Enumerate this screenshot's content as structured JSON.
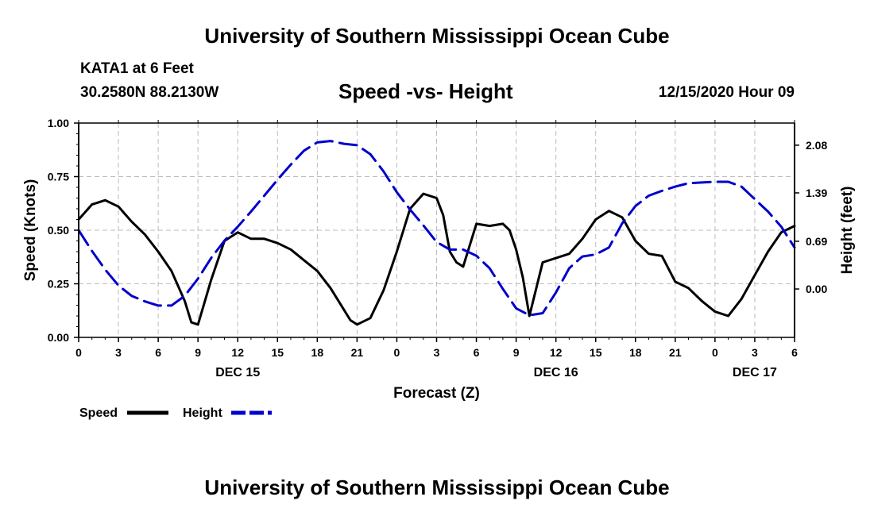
{
  "page": {
    "title": "University of Southern Mississippi Ocean Cube",
    "footer_title": "University of Southern Mississippi Ocean Cube",
    "station": "KATA1 at 6 Feet",
    "coordinates": "30.2580N 88.2130W",
    "forecast_time": "12/15/2020 Hour 09"
  },
  "colors": {
    "speed": "#000000",
    "height": "#0000cc",
    "grid": "#bbbbbb"
  },
  "chart_data": {
    "type": "line",
    "title": "Speed -vs- Height",
    "xlabel": "Forecast (Z)",
    "ylabel": "Speed (Knots)",
    "y2label": "Height (feet)",
    "xlim": [
      0,
      54
    ],
    "ylim": [
      0,
      1
    ],
    "y2lim": [
      -0.7,
      2.4
    ],
    "xticks": [
      0,
      3,
      6,
      9,
      12,
      15,
      18,
      21,
      24,
      27,
      30,
      33,
      36,
      39,
      42,
      45,
      48,
      51,
      54
    ],
    "xtick_labels": [
      "0",
      "3",
      "6",
      "9",
      "12",
      "15",
      "18",
      "21",
      "0",
      "3",
      "6",
      "9",
      "12",
      "15",
      "18",
      "21",
      "0",
      "3",
      "6"
    ],
    "yticks": [
      0,
      0.25,
      0.5,
      0.75,
      1.0
    ],
    "ytick_labels": [
      "0.00",
      "0.25",
      "0.50",
      "0.75",
      "1.00"
    ],
    "y2ticks": [
      0.0,
      0.69,
      1.39,
      2.08
    ],
    "y2tick_labels": [
      "0.00",
      "0.69",
      "1.39",
      "2.08"
    ],
    "day_labels": [
      {
        "x": 12,
        "label": "DEC 15"
      },
      {
        "x": 36,
        "label": "DEC 16"
      },
      {
        "x": 51,
        "label": "DEC 17"
      }
    ],
    "grid": true,
    "series": [
      {
        "name": "Speed",
        "axis": "left",
        "style": "solid",
        "x": [
          0,
          1,
          2,
          3,
          4,
          5,
          6,
          7,
          8,
          8.5,
          9,
          10,
          11,
          12,
          13,
          14,
          15,
          16,
          17,
          18,
          19,
          20,
          20.5,
          21,
          22,
          23,
          24,
          25,
          26,
          27,
          27.5,
          28,
          28.5,
          29,
          30,
          31,
          32,
          32.5,
          33,
          33.5,
          34,
          35,
          36,
          37,
          38,
          39,
          40,
          41,
          42,
          43,
          44,
          45,
          46,
          47,
          48,
          49,
          50,
          51,
          52,
          53,
          54
        ],
        "values": [
          0.55,
          0.62,
          0.64,
          0.61,
          0.54,
          0.48,
          0.4,
          0.31,
          0.17,
          0.07,
          0.06,
          0.27,
          0.45,
          0.49,
          0.46,
          0.46,
          0.44,
          0.41,
          0.36,
          0.31,
          0.23,
          0.13,
          0.08,
          0.06,
          0.09,
          0.22,
          0.4,
          0.6,
          0.67,
          0.65,
          0.57,
          0.4,
          0.35,
          0.33,
          0.53,
          0.52,
          0.53,
          0.5,
          0.41,
          0.28,
          0.1,
          0.35,
          0.37,
          0.39,
          0.46,
          0.55,
          0.59,
          0.56,
          0.45,
          0.39,
          0.38,
          0.26,
          0.23,
          0.17,
          0.12,
          0.1,
          0.18,
          0.29,
          0.4,
          0.49,
          0.52
        ]
      },
      {
        "name": "Height",
        "axis": "right",
        "style": "dashed",
        "x": [
          0,
          1,
          2,
          3,
          4,
          5,
          6,
          7,
          8,
          9,
          10,
          11,
          12,
          13,
          14,
          15,
          16,
          17,
          18,
          19,
          20,
          21,
          22,
          23,
          24,
          25,
          26,
          27,
          28,
          29,
          30,
          31,
          32,
          33,
          34,
          35,
          36,
          37,
          38,
          39,
          40,
          41,
          42,
          43,
          44,
          45,
          46,
          47,
          48,
          49,
          50,
          51,
          52,
          53,
          54
        ],
        "values": [
          0.85,
          0.55,
          0.28,
          0.05,
          -0.1,
          -0.18,
          -0.24,
          -0.24,
          -0.1,
          0.15,
          0.45,
          0.7,
          0.9,
          1.12,
          1.35,
          1.58,
          1.8,
          2.0,
          2.12,
          2.14,
          2.1,
          2.08,
          1.95,
          1.7,
          1.4,
          1.15,
          0.92,
          0.68,
          0.57,
          0.57,
          0.48,
          0.3,
          0.0,
          -0.28,
          -0.38,
          -0.35,
          -0.05,
          0.3,
          0.47,
          0.5,
          0.6,
          0.95,
          1.2,
          1.35,
          1.42,
          1.48,
          1.53,
          1.54,
          1.55,
          1.55,
          1.48,
          1.3,
          1.12,
          0.9,
          0.6
        ]
      }
    ],
    "legend": [
      {
        "label": "Speed",
        "style": "solid"
      },
      {
        "label": "Height",
        "style": "dashed"
      }
    ],
    "legend_position": "bottom-left"
  }
}
